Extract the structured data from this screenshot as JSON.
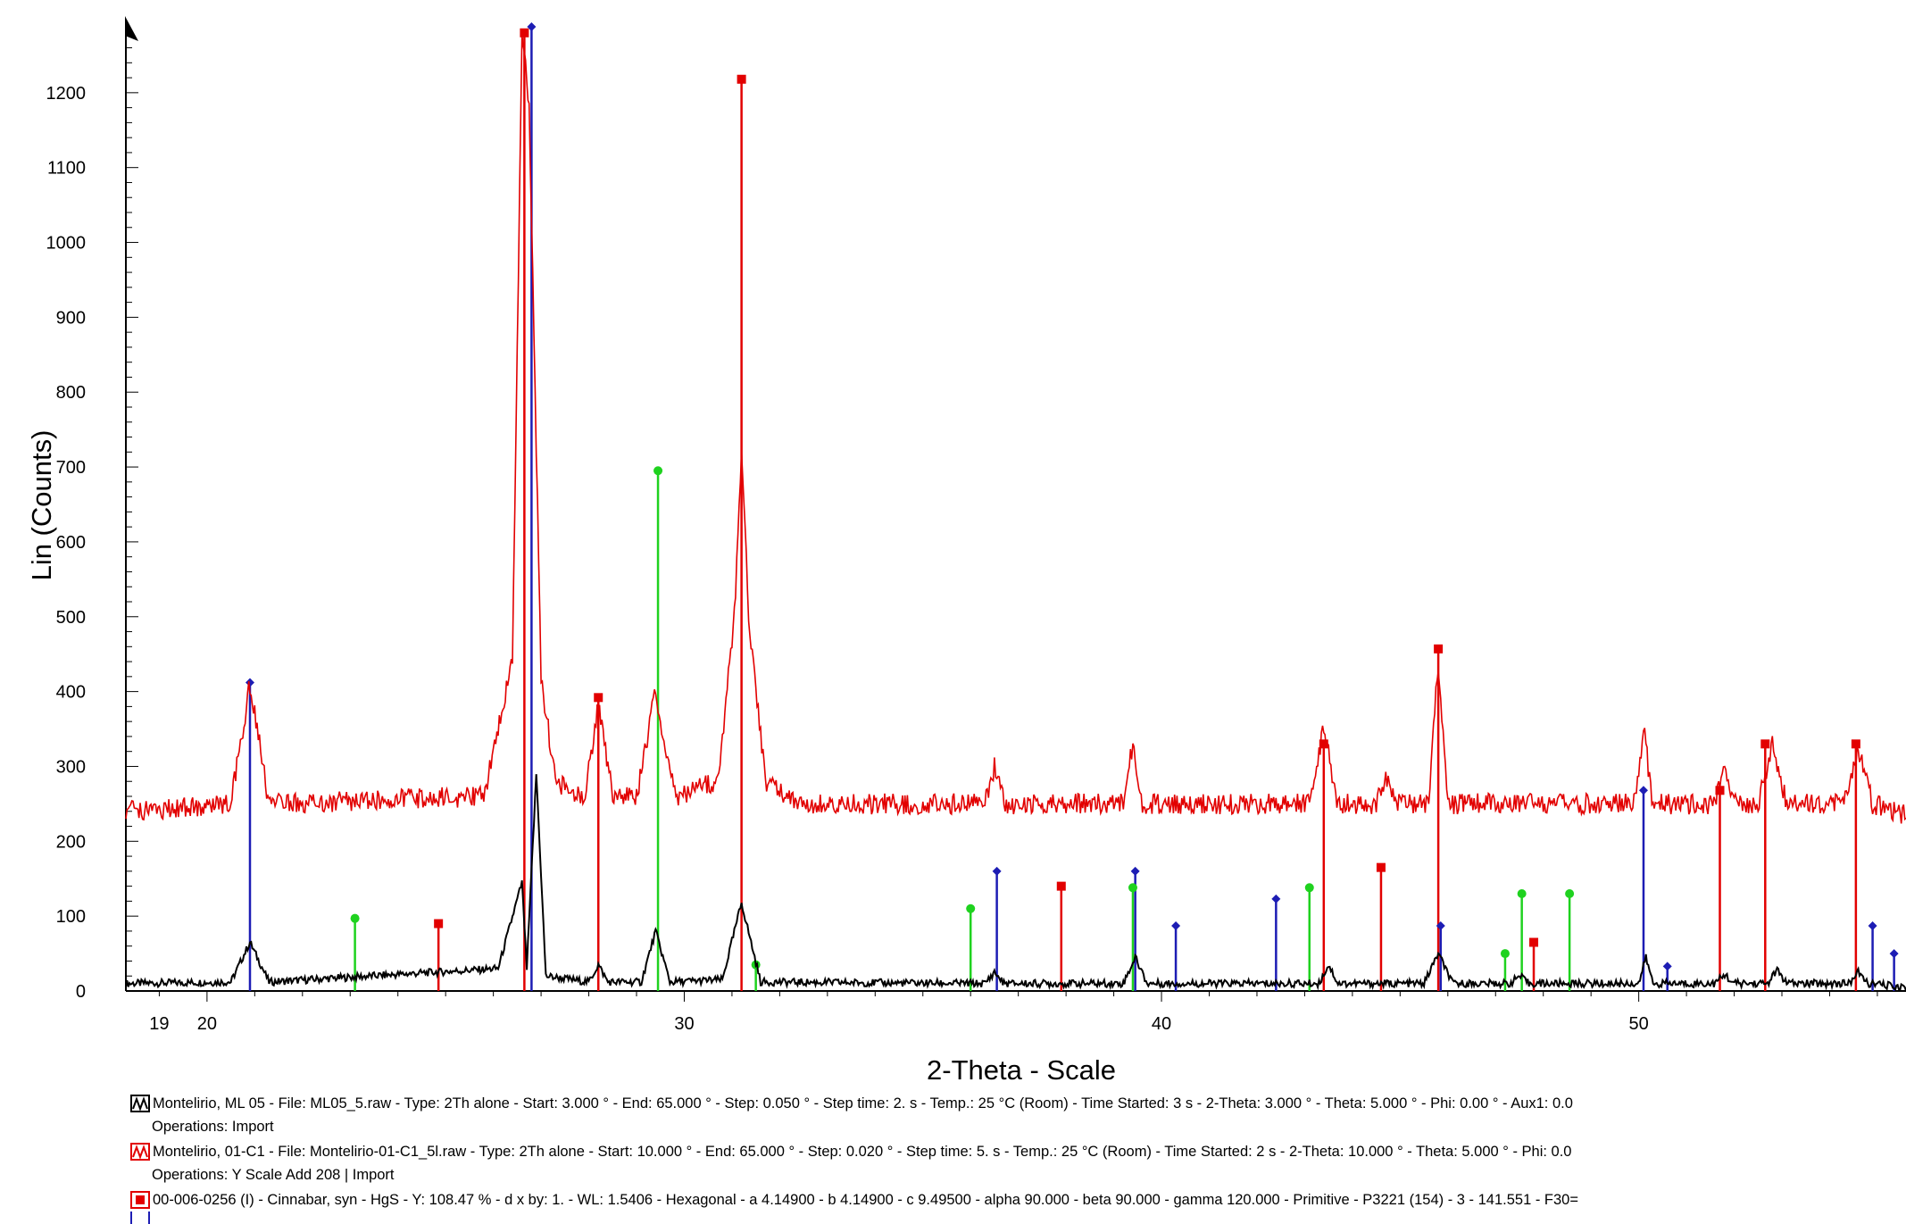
{
  "chart_data": {
    "type": "line",
    "xlabel": "2-Theta - Scale",
    "ylabel": "Lin (Counts)",
    "xlim": [
      18.3,
      55.6
    ],
    "ylim": [
      0,
      1300
    ],
    "x_ticks": [
      19,
      20,
      30,
      40,
      50
    ],
    "y_ticks": [
      0,
      100,
      200,
      300,
      400,
      500,
      600,
      700,
      800,
      900,
      1000,
      1100,
      1200
    ],
    "grid": false,
    "colors": {
      "black": "#000000",
      "red": "#e20000",
      "blue": "#1d1db4",
      "green": "#1fd21f"
    },
    "series": [
      {
        "color": "#000000",
        "x": [
          18.3,
          20.5,
          20.9,
          21.3,
          26.1,
          26.6,
          26.7,
          26.9,
          27.1,
          28.0,
          28.2,
          28.4,
          29.1,
          29.4,
          29.7,
          30.8,
          31.2,
          31.6,
          36.3,
          36.5,
          36.7,
          39.2,
          39.45,
          39.7,
          43.3,
          43.5,
          43.7,
          45.5,
          45.8,
          46.1,
          47.3,
          47.5,
          47.7,
          50.0,
          50.15,
          50.3,
          51.6,
          51.8,
          52.0,
          52.7,
          52.9,
          53.1,
          54.4,
          54.6,
          54.8,
          55.6
        ],
        "y": [
          10,
          12,
          65,
          12,
          30,
          145,
          30,
          290,
          20,
          12,
          35,
          12,
          12,
          80,
          12,
          15,
          118,
          12,
          10,
          25,
          10,
          10,
          45,
          10,
          10,
          35,
          10,
          10,
          50,
          10,
          10,
          20,
          10,
          10,
          45,
          10,
          10,
          22,
          10,
          10,
          28,
          10,
          10,
          25,
          10,
          5
        ]
      },
      {
        "color": "#e20000",
        "x": [
          18.3,
          20.5,
          20.9,
          21.3,
          25.8,
          26.4,
          26.6,
          26.75,
          27.0,
          27.3,
          27.9,
          28.2,
          28.5,
          29.0,
          29.4,
          29.8,
          30.7,
          31.05,
          31.2,
          31.35,
          31.7,
          32.5,
          36.3,
          36.5,
          36.7,
          39.2,
          39.4,
          39.6,
          43.1,
          43.4,
          43.7,
          44.5,
          44.7,
          44.9,
          45.6,
          45.8,
          46.0,
          49.9,
          50.1,
          50.3,
          51.6,
          51.8,
          52.0,
          52.5,
          52.8,
          53.1,
          54.3,
          54.6,
          54.9,
          55.6
        ],
        "y": [
          240,
          250,
          410,
          250,
          260,
          440,
          1280,
          1180,
          420,
          280,
          260,
          380,
          260,
          260,
          400,
          260,
          280,
          500,
          730,
          500,
          280,
          250,
          250,
          300,
          250,
          250,
          330,
          250,
          250,
          350,
          250,
          250,
          290,
          250,
          250,
          440,
          250,
          250,
          350,
          250,
          250,
          305,
          250,
          250,
          330,
          250,
          250,
          325,
          250,
          235
        ]
      }
    ],
    "reference_patterns": [
      {
        "color": "#e20000",
        "marker": "square",
        "x": [
          26.65,
          28.2,
          24.85,
          31.2,
          37.9,
          43.4,
          44.6,
          45.8,
          47.8,
          51.7,
          52.65,
          54.55
        ],
        "y": [
          1280,
          392,
          90,
          1218,
          140,
          330,
          165,
          457,
          65,
          268,
          330,
          330
        ]
      },
      {
        "color": "#1d1db4",
        "marker": "diamond",
        "x": [
          20.9,
          26.8,
          36.55,
          39.45,
          40.3,
          42.4,
          45.85,
          50.1,
          50.6,
          54.9,
          55.35
        ],
        "y": [
          412,
          1288,
          160,
          160,
          87,
          123,
          87,
          268,
          33,
          87,
          50
        ]
      },
      {
        "color": "#1fd21f",
        "marker": "circle",
        "x": [
          23.1,
          29.45,
          31.5,
          36.0,
          39.4,
          43.1,
          47.2,
          47.55,
          48.55
        ],
        "y": [
          97,
          695,
          35,
          110,
          138,
          138,
          50,
          130,
          130
        ]
      }
    ]
  },
  "legend": {
    "line1": "Montelirio, ML 05 - File: ML05_5.raw - Type: 2Th alone - Start: 3.000 ° - End: 65.000 ° - Step: 0.050 ° - Step time: 2. s - Temp.: 25 °C (Room) - Time Started: 3 s - 2-Theta: 3.000 ° - Theta: 5.000 ° - Phi: 0.00 ° - Aux1: 0.0",
    "ops1": "Operations: Import",
    "line2": "Montelirio, 01-C1 - File: Montelirio-01-C1_5l.raw - Type: 2Th alone - Start: 10.000 ° - End: 65.000 ° - Step: 0.020 ° - Step time: 5. s - Temp.: 25 °C (Room) - Time Started: 2 s - 2-Theta: 10.000 ° - Theta: 5.000 ° - Phi: 0.0",
    "ops2": "Operations: Y Scale Add 208 | Import",
    "line3": "00-006-0256 (I) - Cinnabar, syn - HgS - Y: 108.47 % - d x by: 1. - WL: 1.5406 - Hexagonal - a 4.14900 - b 4.14900 - c 9.49500 - alpha 90.000 - beta 90.000 - gamma 120.000 - Primitive - P3221 (154) - 3 - 141.551 - F30="
  }
}
